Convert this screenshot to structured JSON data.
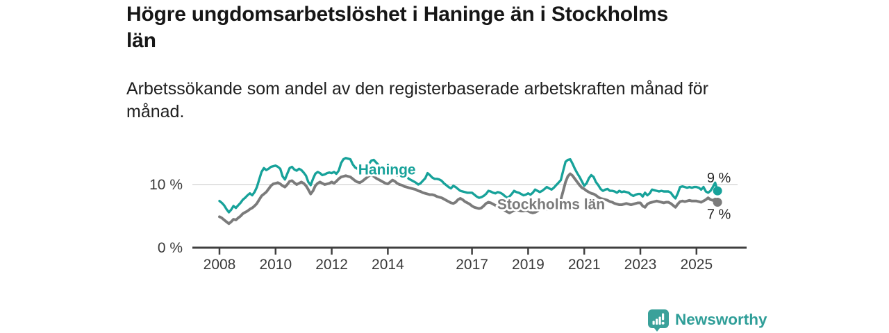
{
  "header": {
    "title": "Högre ungdomsarbetslöshet i Haninge än i Stockholms\nlän",
    "subtitle": "Arbetssökande som andel av den registerbaserade arbetskraften månad för\nmånad."
  },
  "footer": {
    "brand": "Newsworthy",
    "logo_icon": "newsworthy-speech-bubble-bar-chart-icon"
  },
  "colors": {
    "haninge": "#17a29a",
    "stockholms_lan": "#7b7b7b",
    "axis": "#3f3f3f",
    "grid": "#d9d9d9",
    "tick_text": "#3a3a3a",
    "end_label_text": "#222222",
    "brand_teal": "#2f9e98",
    "background": "#ffffff"
  },
  "chart_data": {
    "type": "line",
    "title": "Högre ungdomsarbetslöshet i Haninge än i Stockholms län",
    "subtitle": "Arbetssökande som andel av den registerbaserade arbetskraften månad för månad.",
    "unit": "%",
    "x_start_year": 2008,
    "x_months_per_point": 1,
    "x_end": "2025-10",
    "x_ticks": [
      2008,
      2010,
      2012,
      2014,
      2017,
      2019,
      2021,
      2023,
      2025
    ],
    "y_ticks": [
      {
        "value": 0,
        "label": "0 %"
      },
      {
        "value": 10,
        "label": "10 %"
      }
    ],
    "y_gridlines": [
      10
    ],
    "ylim": [
      0,
      15.5
    ],
    "grid": "horizontal-only",
    "legend": "inline-labels",
    "series": [
      {
        "name": "Stockholms län",
        "color": "#7b7b7b",
        "line_width": 3.9,
        "end_label": "7 %",
        "end_label_position": "below",
        "label_anchor": {
          "year": 2019.82,
          "value": 7.0
        },
        "values": [
          4.9,
          4.7,
          4.4,
          4.1,
          3.8,
          4.1,
          4.5,
          4.4,
          4.7,
          5.0,
          5.4,
          5.6,
          5.8,
          6.1,
          6.3,
          6.6,
          7.0,
          7.6,
          8.2,
          8.5,
          8.8,
          9.3,
          9.8,
          10.1,
          10.2,
          10.3,
          10.1,
          9.8,
          9.6,
          10.0,
          10.5,
          10.6,
          10.3,
          10.0,
          10.2,
          10.4,
          10.2,
          9.8,
          9.2,
          8.5,
          9.0,
          9.8,
          10.2,
          10.4,
          10.2,
          10.0,
          10.1,
          10.2,
          10.4,
          10.2,
          10.5,
          10.9,
          11.2,
          11.3,
          11.4,
          11.3,
          11.2,
          10.9,
          10.6,
          10.4,
          10.3,
          10.5,
          10.8,
          11.1,
          11.4,
          11.5,
          11.3,
          11.0,
          10.8,
          10.6,
          10.4,
          10.2,
          10.1,
          10.4,
          10.7,
          10.5,
          10.2,
          10.0,
          9.9,
          9.7,
          9.6,
          9.5,
          9.4,
          9.3,
          9.2,
          9.0,
          8.9,
          8.7,
          8.6,
          8.5,
          8.4,
          8.4,
          8.3,
          8.1,
          8.0,
          7.9,
          7.7,
          7.5,
          7.3,
          7.1,
          7.0,
          7.2,
          7.6,
          7.8,
          7.6,
          7.3,
          7.1,
          6.9,
          6.6,
          6.4,
          6.3,
          6.2,
          6.3,
          6.6,
          7.0,
          7.2,
          7.1,
          6.9,
          6.7,
          6.5,
          6.3,
          6.1,
          5.9,
          5.7,
          5.5,
          5.7,
          5.9,
          6.0,
          5.9,
          5.8,
          5.8,
          5.9,
          5.8,
          5.6,
          5.5,
          5.6,
          5.8,
          6.1,
          6.3,
          6.2,
          6.1,
          6.2,
          6.4,
          6.5,
          6.7,
          7.0,
          7.6,
          9.0,
          10.4,
          11.3,
          11.7,
          11.4,
          10.9,
          10.4,
          9.9,
          9.5,
          9.3,
          9.0,
          8.8,
          8.6,
          8.5,
          8.3,
          8.0,
          7.8,
          7.7,
          7.6,
          7.5,
          7.3,
          7.2,
          7.0,
          6.9,
          6.8,
          6.8,
          6.9,
          7.0,
          6.9,
          6.8,
          6.9,
          7.0,
          7.1,
          7.1,
          6.6,
          6.4,
          6.9,
          7.1,
          7.2,
          7.3,
          7.4,
          7.3,
          7.2,
          7.1,
          7.2,
          7.2,
          7.0,
          6.7,
          6.4,
          6.9,
          7.3,
          7.4,
          7.3,
          7.4,
          7.5,
          7.4,
          7.4,
          7.4,
          7.3,
          7.2,
          7.4,
          7.6,
          7.9,
          7.6,
          7.5,
          7.7,
          7.2
        ]
      },
      {
        "name": "Haninge",
        "color": "#17a29a",
        "line_width": 3.4,
        "end_label": "9 %",
        "end_label_position": "above",
        "label_anchor": {
          "year": 2013.97,
          "value": 12.5
        },
        "values": [
          7.4,
          7.1,
          6.7,
          6.1,
          5.6,
          6.0,
          6.6,
          6.3,
          6.7,
          7.1,
          7.6,
          7.9,
          8.3,
          8.6,
          8.3,
          8.8,
          9.6,
          10.8,
          12.0,
          12.6,
          12.3,
          12.5,
          12.8,
          12.9,
          13.0,
          12.8,
          12.5,
          11.3,
          10.8,
          11.7,
          12.6,
          12.8,
          12.4,
          12.2,
          12.5,
          12.3,
          11.9,
          11.4,
          10.4,
          9.9,
          10.9,
          11.7,
          12.0,
          11.8,
          11.5,
          11.6,
          11.8,
          11.9,
          11.8,
          12.0,
          11.7,
          12.2,
          13.4,
          14.0,
          14.2,
          14.1,
          14.0,
          13.2,
          12.7,
          12.5,
          12.6,
          12.8,
          12.5,
          12.9,
          13.3,
          13.8,
          13.9,
          13.5,
          13.1,
          12.8,
          12.6,
          12.4,
          12.2,
          12.4,
          12.0,
          11.7,
          11.4,
          11.8,
          12.0,
          11.7,
          11.3,
          10.9,
          10.7,
          10.5,
          10.3,
          10.0,
          10.2,
          10.6,
          11.0,
          11.8,
          11.5,
          11.1,
          10.9,
          10.9,
          10.8,
          10.6,
          10.2,
          9.9,
          9.6,
          9.4,
          9.8,
          9.6,
          9.3,
          9.0,
          8.9,
          8.8,
          8.7,
          8.7,
          8.7,
          8.4,
          8.1,
          7.9,
          8.0,
          8.2,
          8.5,
          9.0,
          8.9,
          8.7,
          8.6,
          8.8,
          8.7,
          8.5,
          8.2,
          7.9,
          8.1,
          8.5,
          9.0,
          8.8,
          8.7,
          8.5,
          8.3,
          8.4,
          8.6,
          8.4,
          8.7,
          9.2,
          9.0,
          8.8,
          9.0,
          9.3,
          9.6,
          9.4,
          9.2,
          9.5,
          9.9,
          10.3,
          10.7,
          12.2,
          13.6,
          13.9,
          14.0,
          13.3,
          12.5,
          11.8,
          11.2,
          10.5,
          9.8,
          10.2,
          11.0,
          11.5,
          11.2,
          10.4,
          9.9,
          9.3,
          9.0,
          9.2,
          9.3,
          9.0,
          9.0,
          8.9,
          8.7,
          9.0,
          8.8,
          8.9,
          8.8,
          8.7,
          8.4,
          8.2,
          8.4,
          8.5,
          8.5,
          8.1,
          8.7,
          8.3,
          8.6,
          9.2,
          9.1,
          9.0,
          8.9,
          9.0,
          8.9,
          8.9,
          8.9,
          8.7,
          8.2,
          7.8,
          8.6,
          9.6,
          9.7,
          9.6,
          9.5,
          9.6,
          9.5,
          9.6,
          9.6,
          9.5,
          9.2,
          9.6,
          8.9,
          8.7,
          9.0,
          9.6,
          10.3,
          9.0
        ]
      }
    ]
  }
}
